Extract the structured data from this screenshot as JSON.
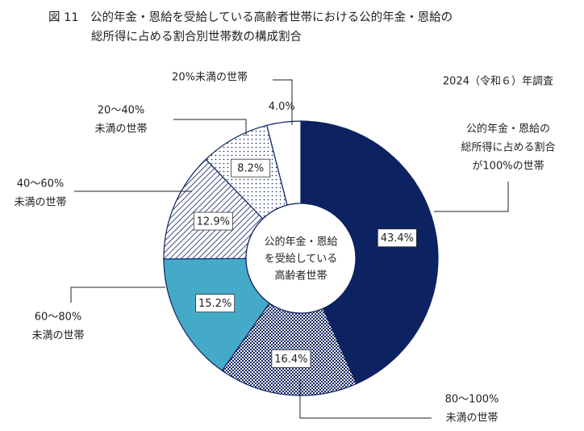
{
  "chart_data": {
    "type": "donut",
    "title": [
      "図 11　公的年金・恩給を受給している高齢者世帯における公的年金・恩給の",
      "総所得に占める割合別世帯数の構成割合"
    ],
    "subtitle": "2024（令和６）年調査",
    "center_label": [
      "公的年金・恩給",
      "を受給している",
      "高齢者世帯"
    ],
    "categories": [
      [
        "公的年金・恩給の",
        "総所得に占める割合",
        "が100%の世帯"
      ],
      [
        "80～100%",
        "未満の世帯"
      ],
      [
        "60～80%",
        "未満の世帯"
      ],
      [
        "40～60%",
        "未満の世帯"
      ],
      [
        "20～40%",
        "未満の世帯"
      ],
      [
        "20%未満の世帯"
      ]
    ],
    "values": [
      43.4,
      16.4,
      15.2,
      12.9,
      8.2,
      4.0
    ],
    "value_labels": [
      "43.4%",
      "16.4%",
      "15.2%",
      "12.9%",
      "8.2%",
      "4.0%"
    ],
    "colors": [
      "#0d2260",
      "#0d2260",
      "#45aac8",
      "#0d2260",
      "#0d2260",
      "#ffffff"
    ],
    "patterns": [
      null,
      "checker",
      null,
      "hatch",
      "dots",
      null
    ]
  }
}
